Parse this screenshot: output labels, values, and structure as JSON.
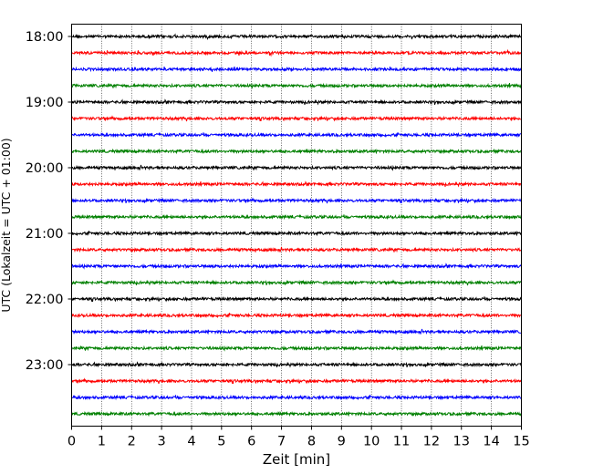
{
  "chart_data": {
    "type": "line",
    "title": "",
    "xlabel": "Zeit  [min]",
    "ylabel": "UTC (Lokalzeit = UTC + 01:00)",
    "xlim": [
      0,
      15
    ],
    "xticks": [
      "0",
      "1",
      "2",
      "3",
      "4",
      "5",
      "6",
      "7",
      "8",
      "9",
      "10",
      "11",
      "12",
      "13",
      "14",
      "15"
    ],
    "yticks": [
      "18:00",
      "19:00",
      "20:00",
      "21:00",
      "22:00",
      "23:00"
    ],
    "x_grid": "dotted vertical lines at each minute",
    "trace_interval_minutes": 15,
    "traces": [
      "18:00",
      "18:15",
      "18:30",
      "18:45",
      "19:00",
      "19:15",
      "19:30",
      "19:45",
      "20:00",
      "20:15",
      "20:30",
      "20:45",
      "21:00",
      "21:15",
      "21:30",
      "21:45",
      "22:00",
      "22:15",
      "22:30",
      "22:45",
      "23:00",
      "23:15",
      "23:30",
      "23:45"
    ],
    "trace_colors": [
      "#000000",
      "#ff0000",
      "#0000ff",
      "#008000"
    ],
    "description_of_values": "seismograph noise traces with small amplitude"
  }
}
